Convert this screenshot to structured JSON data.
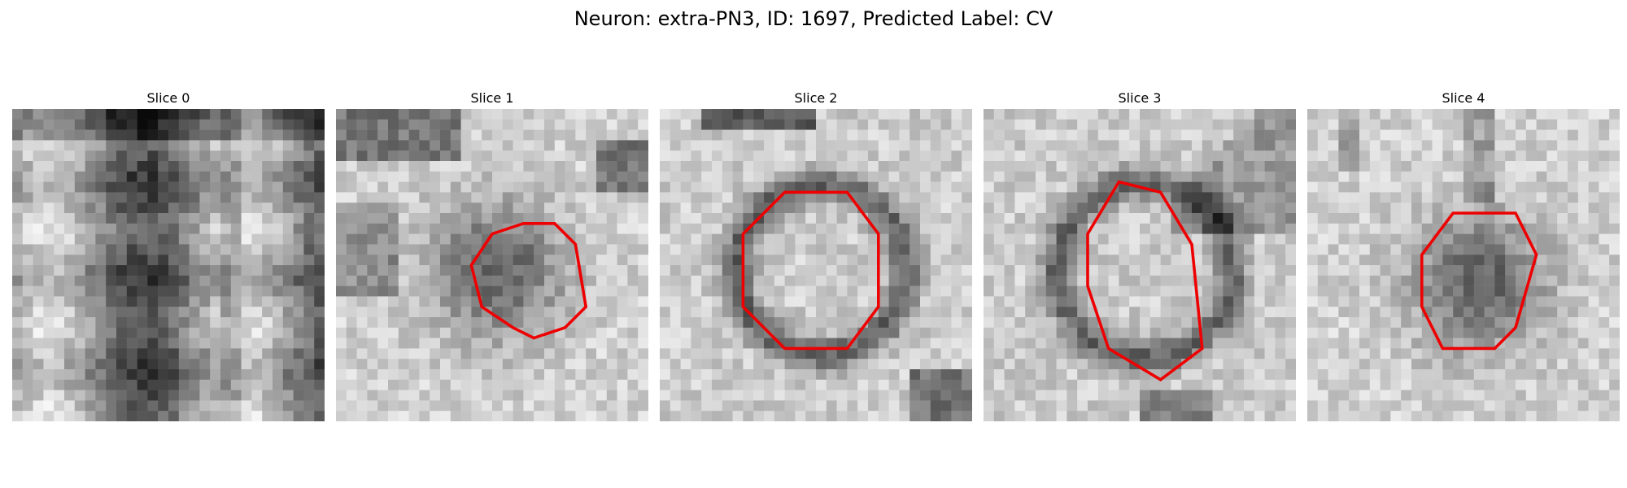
{
  "title": "Neuron: extra-PN3, ID: 1697, Predicted Label: CV",
  "contour_color": "#ee0000",
  "panels": [
    {
      "label": "Slice 0",
      "scene": "vertical-bands",
      "contour": null
    },
    {
      "label": "Slice 1",
      "scene": "dark-blob",
      "contour": [
        [
          21,
          11
        ],
        [
          23,
          13
        ],
        [
          24,
          19
        ],
        [
          22,
          21
        ],
        [
          19,
          22
        ],
        [
          17,
          21
        ],
        [
          14,
          19
        ],
        [
          13,
          15
        ],
        [
          15,
          12
        ],
        [
          18,
          11
        ]
      ]
    },
    {
      "label": "Slice 2",
      "scene": "ring",
      "contour": [
        [
          12,
          8
        ],
        [
          18,
          8
        ],
        [
          21,
          12
        ],
        [
          21,
          19
        ],
        [
          18,
          23
        ],
        [
          12,
          23
        ],
        [
          8,
          19
        ],
        [
          8,
          12
        ]
      ]
    },
    {
      "label": "Slice 3",
      "scene": "ring",
      "contour": [
        [
          13,
          7
        ],
        [
          17,
          8
        ],
        [
          20,
          13
        ],
        [
          21,
          23
        ],
        [
          17,
          26
        ],
        [
          12,
          23
        ],
        [
          10,
          17
        ],
        [
          10,
          12
        ]
      ]
    },
    {
      "label": "Slice 4",
      "scene": "dark-blob",
      "contour": [
        [
          14,
          10
        ],
        [
          20,
          10
        ],
        [
          22,
          14
        ],
        [
          20,
          21
        ],
        [
          18,
          23
        ],
        [
          13,
          23
        ],
        [
          11,
          19
        ],
        [
          11,
          14
        ]
      ]
    }
  ]
}
